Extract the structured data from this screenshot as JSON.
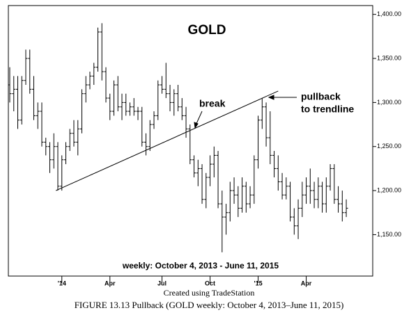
{
  "chart_data": {
    "type": "ohlc",
    "title": "GOLD",
    "subtitle": "weekly: October 4, 2013 - June 11, 2015",
    "credit": "Created using TradeStation",
    "caption": "FIGURE 13.13 Pullback (GOLD weekly: October 4, 2013–June 11, 2015)",
    "color": "#000000",
    "x": [
      0,
      1,
      2,
      3,
      4,
      5,
      6,
      7,
      8,
      9,
      10,
      11,
      12,
      13,
      14,
      15,
      16,
      17,
      18,
      19,
      20,
      21,
      22,
      23,
      24,
      25,
      26,
      27,
      28,
      29,
      30,
      31,
      32,
      33,
      34,
      35,
      36,
      37,
      38,
      39,
      40,
      41,
      42,
      43,
      44,
      45,
      46,
      47,
      48,
      49,
      50,
      51,
      52,
      53,
      54,
      55,
      56,
      57,
      58,
      59,
      60,
      61,
      62,
      63,
      64,
      65,
      66,
      67,
      68,
      69,
      70,
      71,
      72,
      73,
      74,
      75,
      76,
      77,
      78,
      79,
      80,
      81,
      82,
      83,
      84
    ],
    "open": [
      1320,
      1310,
      1315,
      1280,
      1325,
      1350,
      1315,
      1285,
      1290,
      1255,
      1250,
      1235,
      1250,
      1205,
      1235,
      1250,
      1265,
      1255,
      1270,
      1310,
      1320,
      1330,
      1340,
      1380,
      1335,
      1305,
      1290,
      1320,
      1295,
      1300,
      1290,
      1295,
      1290,
      1290,
      1255,
      1250,
      1275,
      1285,
      1320,
      1315,
      1310,
      1300,
      1310,
      1295,
      1285,
      1270,
      1235,
      1220,
      1225,
      1190,
      1215,
      1230,
      1240,
      1185,
      1170,
      1175,
      1200,
      1195,
      1180,
      1205,
      1185,
      1195,
      1235,
      1280,
      1295,
      1260,
      1240,
      1225,
      1210,
      1195,
      1205,
      1170,
      1160,
      1180,
      1195,
      1205,
      1200,
      1190,
      1205,
      1185,
      1205,
      1225,
      1190,
      1185,
      1175
    ],
    "high": [
      1340,
      1330,
      1330,
      1330,
      1360,
      1360,
      1330,
      1300,
      1300,
      1260,
      1255,
      1265,
      1255,
      1240,
      1255,
      1270,
      1280,
      1280,
      1315,
      1330,
      1335,
      1345,
      1385,
      1390,
      1340,
      1310,
      1325,
      1330,
      1310,
      1310,
      1300,
      1305,
      1295,
      1295,
      1265,
      1280,
      1290,
      1325,
      1330,
      1345,
      1320,
      1315,
      1320,
      1305,
      1295,
      1275,
      1240,
      1235,
      1230,
      1220,
      1240,
      1250,
      1245,
      1200,
      1185,
      1210,
      1215,
      1205,
      1215,
      1210,
      1205,
      1240,
      1285,
      1305,
      1300,
      1290,
      1245,
      1240,
      1220,
      1215,
      1210,
      1180,
      1190,
      1210,
      1215,
      1225,
      1210,
      1215,
      1210,
      1215,
      1230,
      1230,
      1205,
      1200,
      1190
    ],
    "low": [
      1300,
      1290,
      1270,
      1275,
      1320,
      1310,
      1280,
      1270,
      1250,
      1240,
      1220,
      1225,
      1200,
      1200,
      1230,
      1245,
      1250,
      1240,
      1265,
      1300,
      1315,
      1320,
      1335,
      1325,
      1300,
      1280,
      1285,
      1290,
      1280,
      1285,
      1285,
      1285,
      1280,
      1250,
      1240,
      1245,
      1270,
      1280,
      1310,
      1305,
      1290,
      1285,
      1290,
      1280,
      1260,
      1230,
      1215,
      1205,
      1185,
      1180,
      1205,
      1215,
      1180,
      1130,
      1150,
      1165,
      1185,
      1170,
      1175,
      1175,
      1180,
      1185,
      1225,
      1270,
      1250,
      1230,
      1215,
      1200,
      1190,
      1190,
      1165,
      1150,
      1145,
      1170,
      1185,
      1185,
      1180,
      1180,
      1175,
      1175,
      1200,
      1185,
      1175,
      1165,
      1170
    ],
    "close": [
      1310,
      1315,
      1280,
      1325,
      1350,
      1315,
      1285,
      1290,
      1255,
      1250,
      1235,
      1250,
      1205,
      1235,
      1250,
      1265,
      1255,
      1270,
      1310,
      1320,
      1330,
      1340,
      1380,
      1335,
      1305,
      1290,
      1320,
      1295,
      1300,
      1290,
      1295,
      1290,
      1290,
      1255,
      1250,
      1275,
      1285,
      1320,
      1315,
      1310,
      1300,
      1310,
      1295,
      1285,
      1270,
      1235,
      1220,
      1225,
      1190,
      1215,
      1230,
      1240,
      1185,
      1170,
      1175,
      1200,
      1195,
      1180,
      1205,
      1185,
      1195,
      1235,
      1280,
      1295,
      1260,
      1240,
      1225,
      1210,
      1195,
      1205,
      1170,
      1160,
      1180,
      1195,
      1205,
      1200,
      1190,
      1205,
      1185,
      1205,
      1225,
      1190,
      1185,
      1175,
      1180
    ],
    "xlim": [
      -0.35,
      90.6
    ],
    "xticks": [
      {
        "value": 13,
        "label": "'14"
      },
      {
        "value": 25,
        "label": "Apr"
      },
      {
        "value": 38,
        "label": "Jul"
      },
      {
        "value": 50,
        "label": "Oct"
      },
      {
        "value": 62,
        "label": "'15"
      },
      {
        "value": 74,
        "label": "Apr"
      }
    ],
    "ylim": [
      1103,
      1410
    ],
    "yticks": [
      {
        "value": 1150,
        "label": "1,150.00"
      },
      {
        "value": 1200,
        "label": "1,200.00"
      },
      {
        "value": 1250,
        "label": "1,250.00"
      },
      {
        "value": 1300,
        "label": "1,300.00"
      },
      {
        "value": 1350,
        "label": "1,350.00"
      },
      {
        "value": 1400,
        "label": "1,400.00"
      }
    ],
    "trendline": {
      "x": [
        11.5,
        67
      ],
      "y": [
        1200,
        1313
      ]
    },
    "annotations": [
      "break",
      "pullback",
      "to trendline"
    ]
  }
}
